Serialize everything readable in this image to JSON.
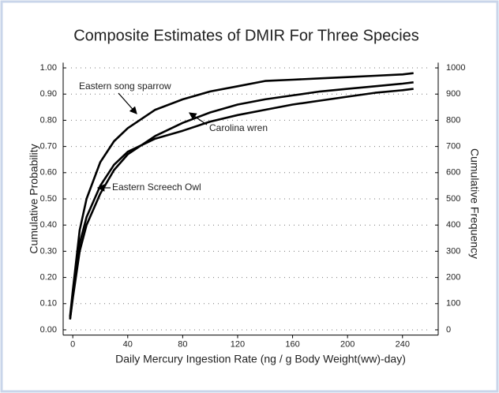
{
  "chart_data": {
    "type": "line",
    "title": "Composite Estimates of DMIR For Three Species",
    "x_label": "Daily Mercury Ingestion Rate (ng / g Body Weight(ww)-day)",
    "y_label": "Cumulative Probability",
    "y2_label": "Cumulative Frequency",
    "x": [
      -2,
      0,
      5,
      10,
      20,
      30,
      40,
      60,
      80,
      100,
      120,
      140,
      160,
      180,
      200,
      220,
      240,
      248
    ],
    "series": [
      {
        "name": "Eastern song sparrow",
        "color": "#000000",
        "values": [
          0.05,
          0.15,
          0.38,
          0.5,
          0.64,
          0.72,
          0.77,
          0.84,
          0.88,
          0.91,
          0.93,
          0.95,
          0.955,
          0.96,
          0.965,
          0.97,
          0.975,
          0.98
        ]
      },
      {
        "name": "Carolina wren",
        "color": "#000000",
        "values": [
          0.04,
          0.12,
          0.3,
          0.4,
          0.52,
          0.61,
          0.67,
          0.74,
          0.79,
          0.83,
          0.86,
          0.88,
          0.895,
          0.91,
          0.92,
          0.93,
          0.94,
          0.945
        ]
      },
      {
        "name": "Eastern Screech Owl",
        "color": "#000000",
        "values": [
          0.04,
          0.13,
          0.33,
          0.43,
          0.55,
          0.63,
          0.68,
          0.73,
          0.76,
          0.795,
          0.82,
          0.84,
          0.86,
          0.875,
          0.89,
          0.905,
          0.915,
          0.92
        ]
      }
    ],
    "xlim": [
      -7,
      266
    ],
    "xticks": [
      0,
      40,
      80,
      120,
      160,
      200,
      240
    ],
    "ylim": [
      -0.02,
      1.02
    ],
    "yticks": [
      {
        "value": 0,
        "label": "0.00"
      },
      {
        "value": 0.1,
        "label": "0.10"
      },
      {
        "value": 0.2,
        "label": "0.20"
      },
      {
        "value": 0.3,
        "label": "0.30"
      },
      {
        "value": 0.4,
        "label": "0.40"
      },
      {
        "value": 0.5,
        "label": "0.50"
      },
      {
        "value": 0.6,
        "label": "0.60"
      },
      {
        "value": 0.7,
        "label": "0.70"
      },
      {
        "value": 0.8,
        "label": "0.80"
      },
      {
        "value": 0.9,
        "label": "0.90"
      },
      {
        "value": 1,
        "label": "1.00"
      }
    ],
    "y2lim": [
      -20,
      1020
    ],
    "y2ticks": [
      0,
      100,
      200,
      300,
      400,
      500,
      600,
      700,
      800,
      900,
      1000
    ],
    "grid": true
  }
}
